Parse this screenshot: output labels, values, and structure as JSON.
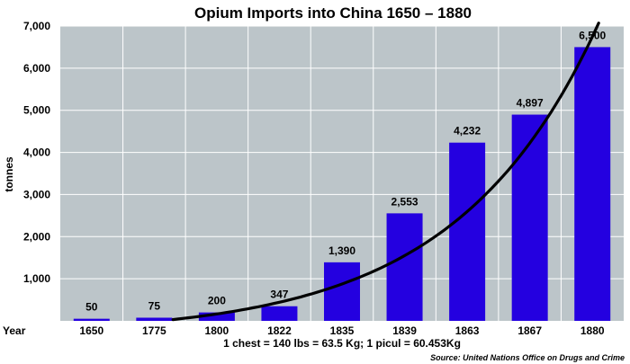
{
  "chart_data": {
    "type": "bar",
    "title": "Opium Imports into China 1650 – 1880",
    "ylabel": "tonnes",
    "xlabel": "Year",
    "categories": [
      "1650",
      "1775",
      "1800",
      "1822",
      "1835",
      "1839",
      "1863",
      "1867",
      "1880"
    ],
    "values": [
      50,
      75,
      200,
      347,
      1390,
      2553,
      4232,
      4897,
      6500
    ],
    "data_labels": [
      "50",
      "75",
      "200",
      "347",
      "1,390",
      "2,553",
      "4,232",
      "4,897",
      "6,500"
    ],
    "ylim": [
      0,
      7000
    ],
    "yticks": [
      1000,
      2000,
      3000,
      4000,
      5000,
      6000,
      7000
    ],
    "ytick_labels": [
      "1,000",
      "2,000",
      "3,000",
      "4,000",
      "5,000",
      "6,000",
      "7,000"
    ],
    "grid": true,
    "trendline": {
      "type": "exponential",
      "start_category": "1775",
      "end_category": "1880"
    },
    "note": "1 chest = 140 lbs = 63.5 Kg; 1 picul = 60.453Kg",
    "source": "Source: United Nations Office on Drugs and Crime"
  },
  "colors": {
    "plot_background": "#bcc5c9",
    "gridline": "#ffffff",
    "bar": "#2400e0",
    "trendline": "#000000"
  }
}
